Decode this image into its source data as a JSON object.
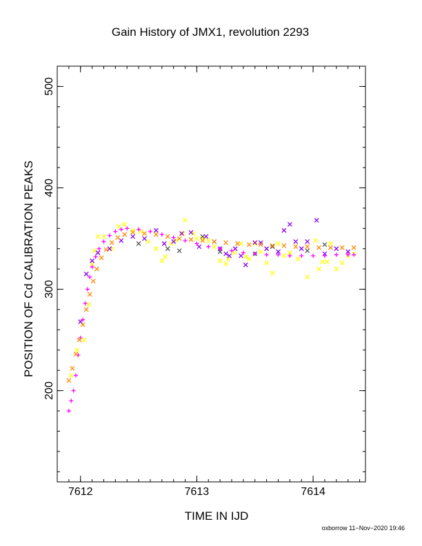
{
  "chart_data": {
    "type": "scatter",
    "title": "Gain History of JMX1, revolution 2293",
    "xlabel": "TIME IN IJD",
    "ylabel": "POSITION OF Cd CALIBRATION PEAKS",
    "xlim": [
      7611.8,
      7614.45
    ],
    "ylim": [
      110,
      520
    ],
    "x_ticks": [
      7612,
      7613,
      7614
    ],
    "x_tick_labels": [
      "7612",
      "7613",
      "7614"
    ],
    "y_ticks": [
      200,
      300,
      400,
      500
    ],
    "y_tick_labels": [
      "200",
      "300",
      "400",
      "500"
    ],
    "grid": false,
    "legend": "none",
    "series": [
      {
        "marker": "x",
        "color": "#ffff00",
        "points": [
          [
            7611.92,
            215
          ],
          [
            7611.97,
            240
          ],
          [
            7612.03,
            250
          ],
          [
            7612.07,
            285
          ],
          [
            7612.1,
            325
          ],
          [
            7612.12,
            338
          ],
          [
            7612.15,
            352
          ],
          [
            7612.2,
            352
          ],
          [
            7612.27,
            340
          ],
          [
            7612.33,
            362
          ],
          [
            7612.38,
            364
          ],
          [
            7612.45,
            358
          ],
          [
            7612.52,
            357
          ],
          [
            7612.58,
            347
          ],
          [
            7612.65,
            340
          ],
          [
            7612.7,
            328
          ],
          [
            7612.73,
            332
          ],
          [
            7612.78,
            345
          ],
          [
            7612.82,
            348
          ],
          [
            7612.88,
            355
          ],
          [
            7612.9,
            368
          ],
          [
            7612.97,
            355
          ],
          [
            7613.0,
            350
          ],
          [
            7613.05,
            350
          ],
          [
            7613.1,
            348
          ],
          [
            7613.15,
            342
          ],
          [
            7613.2,
            328
          ],
          [
            7613.25,
            325
          ],
          [
            7613.27,
            330
          ],
          [
            7613.32,
            336
          ],
          [
            7613.38,
            345
          ],
          [
            7613.42,
            332
          ],
          [
            7613.45,
            330
          ],
          [
            7613.5,
            345
          ],
          [
            7613.55,
            337
          ],
          [
            7613.6,
            326
          ],
          [
            7613.65,
            316
          ],
          [
            7613.7,
            345
          ],
          [
            7613.75,
            333
          ],
          [
            7613.8,
            336
          ],
          [
            7613.87,
            330
          ],
          [
            7613.95,
            312
          ],
          [
            7614.02,
            348
          ],
          [
            7614.05,
            320
          ],
          [
            7614.08,
            327
          ],
          [
            7614.12,
            327
          ],
          [
            7614.15,
            345
          ],
          [
            7614.2,
            320
          ],
          [
            7614.25,
            326
          ],
          [
            7614.3,
            333
          ],
          [
            7614.35,
            335
          ]
        ]
      },
      {
        "marker": "x",
        "color": "#8800ee",
        "points": [
          [
            7612.0,
            268
          ],
          [
            7612.05,
            315
          ],
          [
            7612.1,
            328
          ],
          [
            7612.15,
            336
          ],
          [
            7612.25,
            340
          ],
          [
            7612.35,
            348
          ],
          [
            7612.45,
            352
          ],
          [
            7612.55,
            350
          ],
          [
            7612.65,
            358
          ],
          [
            7612.72,
            345
          ],
          [
            7612.8,
            347
          ],
          [
            7612.87,
            355
          ],
          [
            7612.95,
            356
          ],
          [
            7613.02,
            342
          ],
          [
            7613.08,
            352
          ],
          [
            7613.15,
            347
          ],
          [
            7613.2,
            340
          ],
          [
            7613.25,
            335
          ],
          [
            7613.28,
            333
          ],
          [
            7613.33,
            340
          ],
          [
            7613.38,
            333
          ],
          [
            7613.42,
            324
          ],
          [
            7613.5,
            346
          ],
          [
            7613.55,
            346
          ],
          [
            7613.6,
            340
          ],
          [
            7613.7,
            337
          ],
          [
            7613.75,
            358
          ],
          [
            7613.8,
            364
          ],
          [
            7613.85,
            347
          ],
          [
            7613.9,
            340
          ],
          [
            7613.95,
            347
          ],
          [
            7614.03,
            368
          ],
          [
            7614.1,
            335
          ],
          [
            7614.2,
            340
          ],
          [
            7614.3,
            337
          ]
        ]
      },
      {
        "marker": "x",
        "color": "#555555",
        "points": [
          [
            7612.5,
            345
          ],
          [
            7612.75,
            340
          ],
          [
            7612.85,
            338
          ],
          [
            7613.05,
            352
          ],
          [
            7613.2,
            337
          ],
          [
            7613.5,
            335
          ],
          [
            7613.65,
            342
          ],
          [
            7613.95,
            338
          ],
          [
            7614.1,
            344
          ]
        ]
      },
      {
        "marker": "+",
        "color": "#ff00ff",
        "points": [
          [
            7611.9,
            180
          ],
          [
            7611.92,
            190
          ],
          [
            7611.94,
            200
          ],
          [
            7611.96,
            215
          ],
          [
            7611.98,
            235
          ],
          [
            7612.0,
            252
          ],
          [
            7612.02,
            270
          ],
          [
            7612.04,
            286
          ],
          [
            7612.06,
            300
          ],
          [
            7612.08,
            312
          ],
          [
            7612.1,
            322
          ],
          [
            7612.13,
            332
          ],
          [
            7612.16,
            340
          ],
          [
            7612.2,
            347
          ],
          [
            7612.25,
            353
          ],
          [
            7612.3,
            357
          ],
          [
            7612.35,
            359
          ],
          [
            7612.4,
            360
          ],
          [
            7612.5,
            359
          ],
          [
            7612.6,
            357
          ],
          [
            7612.7,
            354
          ],
          [
            7612.8,
            351
          ],
          [
            7612.9,
            348
          ],
          [
            7613.0,
            345
          ],
          [
            7613.1,
            342
          ],
          [
            7613.2,
            340
          ],
          [
            7613.3,
            338
          ],
          [
            7613.4,
            336
          ],
          [
            7613.5,
            335
          ],
          [
            7613.6,
            334
          ],
          [
            7613.7,
            334
          ],
          [
            7613.8,
            333
          ],
          [
            7613.9,
            333
          ],
          [
            7614.0,
            333
          ],
          [
            7614.1,
            333
          ],
          [
            7614.2,
            334
          ],
          [
            7614.3,
            334
          ],
          [
            7614.35,
            334
          ]
        ]
      },
      {
        "marker": "x",
        "color": "#ff8800",
        "points": [
          [
            7611.9,
            210
          ],
          [
            7611.93,
            222
          ],
          [
            7611.96,
            236
          ],
          [
            7611.99,
            250
          ],
          [
            7612.02,
            265
          ],
          [
            7612.05,
            280
          ],
          [
            7612.08,
            295
          ],
          [
            7612.11,
            308
          ],
          [
            7612.14,
            320
          ],
          [
            7612.18,
            331
          ],
          [
            7612.22,
            339
          ],
          [
            7612.27,
            346
          ],
          [
            7612.32,
            351
          ],
          [
            7612.38,
            354
          ],
          [
            7612.45,
            356
          ],
          [
            7612.55,
            355
          ],
          [
            7612.65,
            354
          ],
          [
            7612.75,
            352
          ],
          [
            7612.85,
            350
          ],
          [
            7612.95,
            349
          ],
          [
            7613.05,
            348
          ],
          [
            7613.15,
            347
          ],
          [
            7613.25,
            346
          ],
          [
            7613.35,
            345
          ],
          [
            7613.45,
            344
          ],
          [
            7613.55,
            344
          ],
          [
            7613.65,
            343
          ],
          [
            7613.75,
            343
          ],
          [
            7613.85,
            342
          ],
          [
            7613.95,
            342
          ],
          [
            7614.05,
            341
          ],
          [
            7614.15,
            341
          ],
          [
            7614.25,
            341
          ],
          [
            7614.35,
            341
          ]
        ]
      }
    ]
  },
  "footer": {
    "credit": "oxborrow 11−Nov−2020 19:46"
  }
}
